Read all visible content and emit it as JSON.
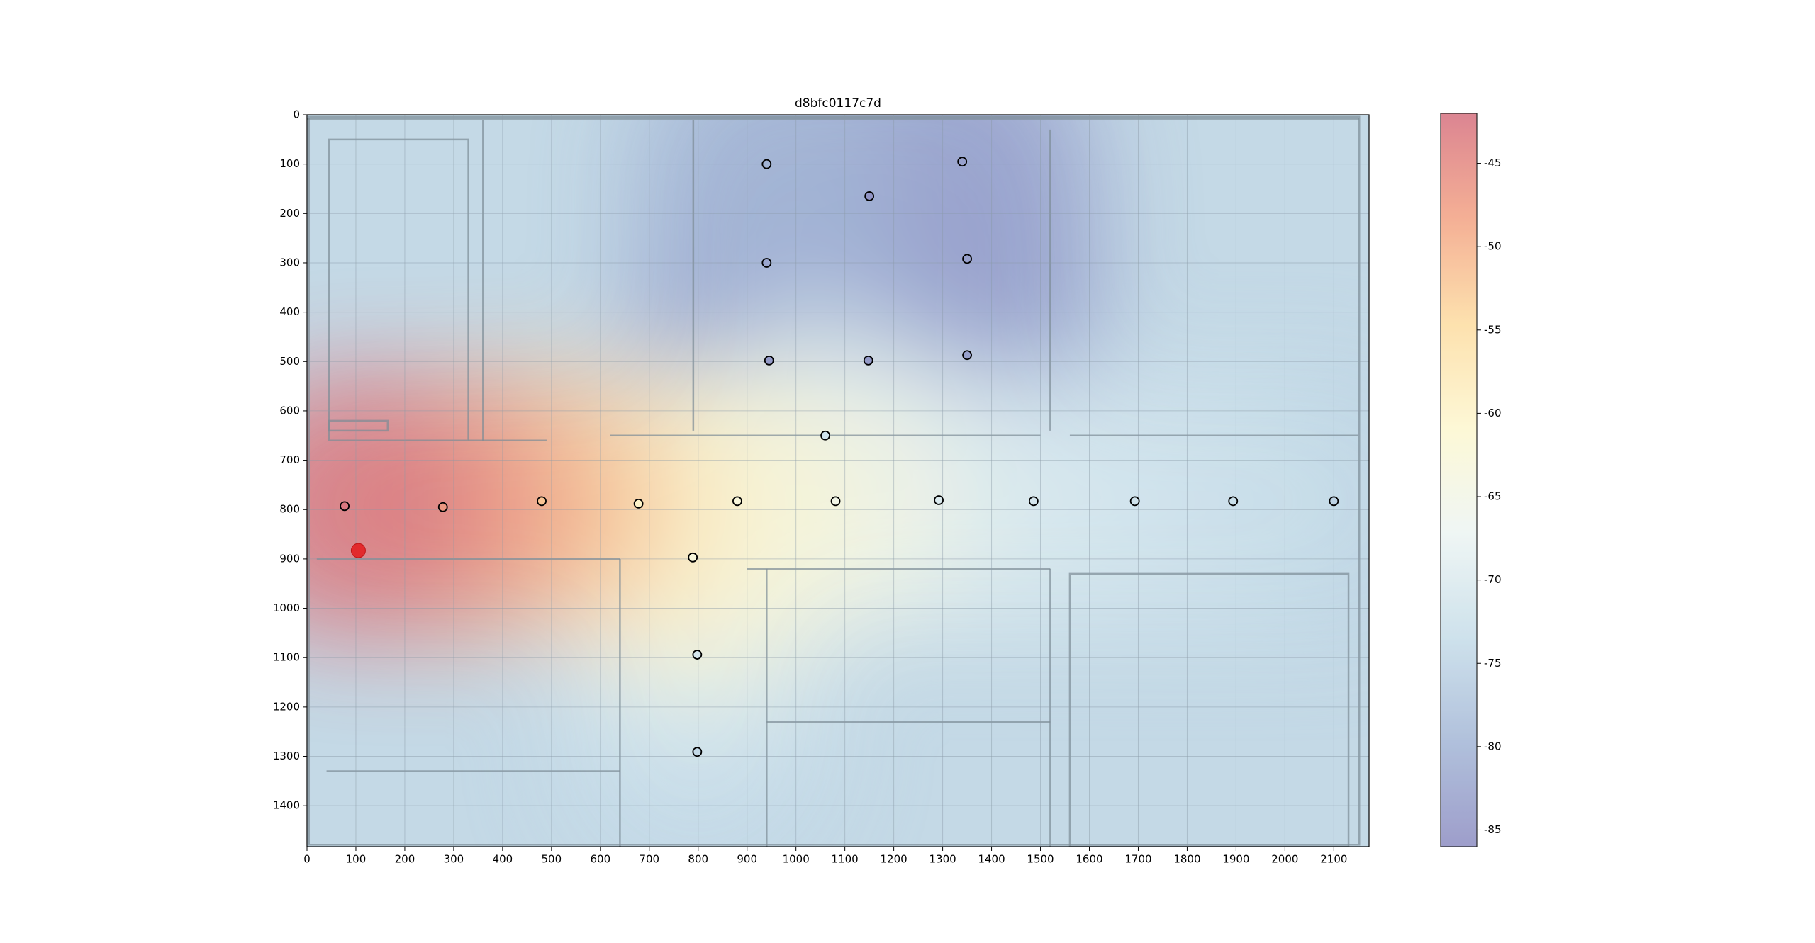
{
  "chart_data": {
    "type": "heatmap_scatter",
    "title": "d8bfc0117c7d",
    "points": {
      "x": [
        940,
        1340,
        1150,
        940,
        1350,
        945,
        1148,
        1350,
        1060,
        77,
        278,
        480,
        678,
        880,
        1081,
        1292,
        1486,
        1693,
        1894,
        2100,
        789,
        798,
        798
      ],
      "y": [
        100,
        95,
        165,
        300,
        292,
        498,
        498,
        487,
        650,
        793,
        795,
        783,
        788,
        783,
        783,
        781,
        783,
        783,
        783,
        783,
        897,
        1094,
        1291
      ],
      "values": [
        -80,
        -83,
        -85,
        -82,
        -83,
        -84,
        -84,
        -83,
        -72,
        -43,
        -47,
        -52,
        -60,
        -63,
        -65,
        -70,
        -71,
        -72,
        -73,
        -75,
        -63,
        -71,
        -74
      ]
    },
    "marker": {
      "x": 105,
      "y": 883,
      "color": "#e41a1c"
    },
    "xlim": [
      0,
      2172
    ],
    "ylim": [
      1483,
      0
    ],
    "xticks": [
      0,
      100,
      200,
      300,
      400,
      500,
      600,
      700,
      800,
      900,
      1000,
      1100,
      1200,
      1300,
      1400,
      1500,
      1600,
      1700,
      1800,
      1900,
      2000,
      2100
    ],
    "yticks": [
      0,
      100,
      200,
      300,
      400,
      500,
      600,
      700,
      800,
      900,
      1000,
      1100,
      1200,
      1300,
      1400
    ],
    "grid": true,
    "colorbar": {
      "lim": [
        -86,
        -42
      ],
      "ticks": [
        -45,
        -50,
        -55,
        -60,
        -65,
        -70,
        -75,
        -80,
        -85
      ],
      "colors": [
        "#8d8dc2",
        "#a3b6d6",
        "#c6dde9",
        "#edf5f3",
        "#fdf7cf",
        "#fddca0",
        "#f3a283",
        "#d6707f"
      ]
    }
  }
}
